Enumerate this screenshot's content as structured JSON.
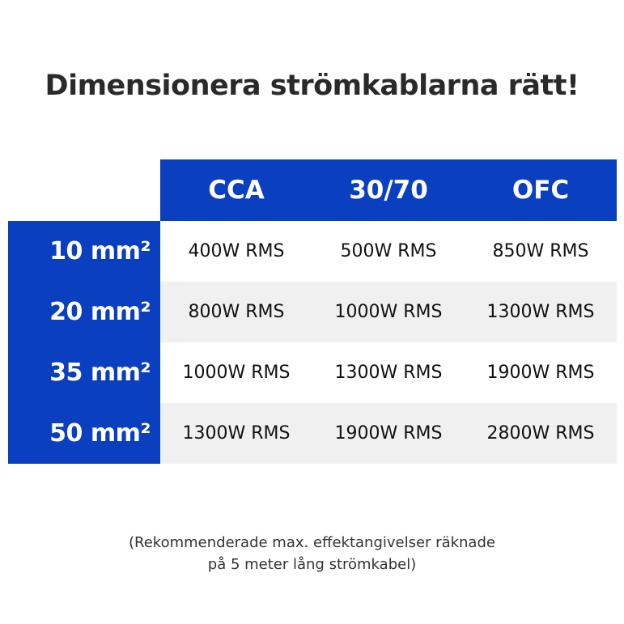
{
  "title": "Dimensionera strömkablarna rätt!",
  "colors": {
    "accent": "#0a3fbf",
    "alt_row": "#f0f0f0"
  },
  "columns": [
    "CCA",
    "30/70",
    "OFC"
  ],
  "rows": [
    {
      "label": "10 mm²",
      "values": [
        "400W RMS",
        "500W RMS",
        "850W RMS"
      ]
    },
    {
      "label": "20 mm²",
      "values": [
        "800W RMS",
        "1000W RMS",
        "1300W RMS"
      ]
    },
    {
      "label": "35 mm²",
      "values": [
        "1000W RMS",
        "1300W RMS",
        "1900W RMS"
      ]
    },
    {
      "label": "50 mm²",
      "values": [
        "1300W RMS",
        "1900W RMS",
        "2800W RMS"
      ]
    }
  ],
  "note": {
    "line1": "(Rekommenderade max. effektangivelser räknade",
    "line2": "på 5 meter lång strömkabel)"
  }
}
